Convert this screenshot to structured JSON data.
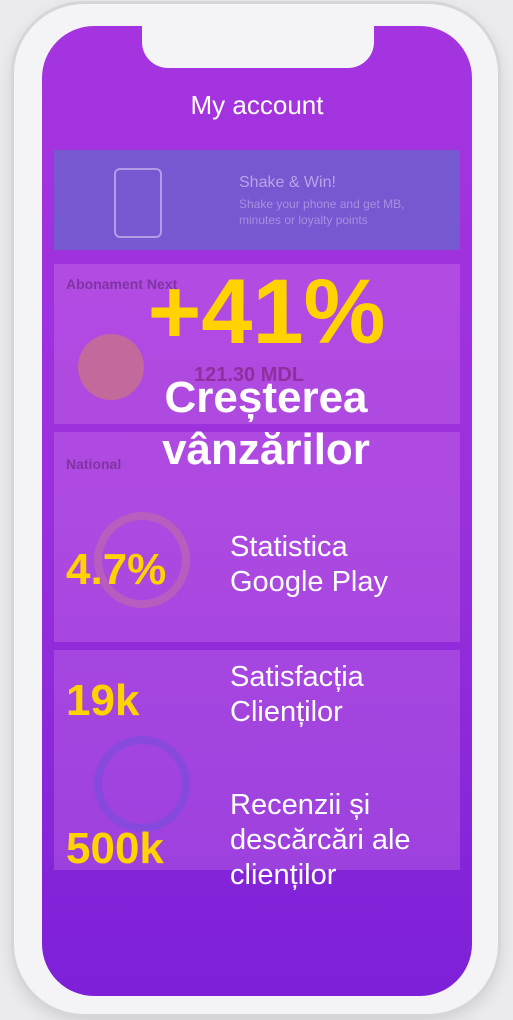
{
  "header": {
    "title": "My account"
  },
  "banner": {
    "title": "Shake & Win!",
    "text": "Shake your phone and get MB, minutes or loyalty points"
  },
  "cards": [
    {
      "title": "Abonament Next",
      "amount": "121.30 MDL"
    },
    {
      "title": "National"
    }
  ],
  "headline": {
    "value": "+41%",
    "label": "Creșterea vânzărilor"
  },
  "stats": [
    {
      "value": "4.7%",
      "label": "Statistica Google Play"
    },
    {
      "value": "19k",
      "label": "Satisfacția Clienților"
    },
    {
      "value": "500k",
      "label": "Recenzii și descărcări ale clienților"
    }
  ]
}
